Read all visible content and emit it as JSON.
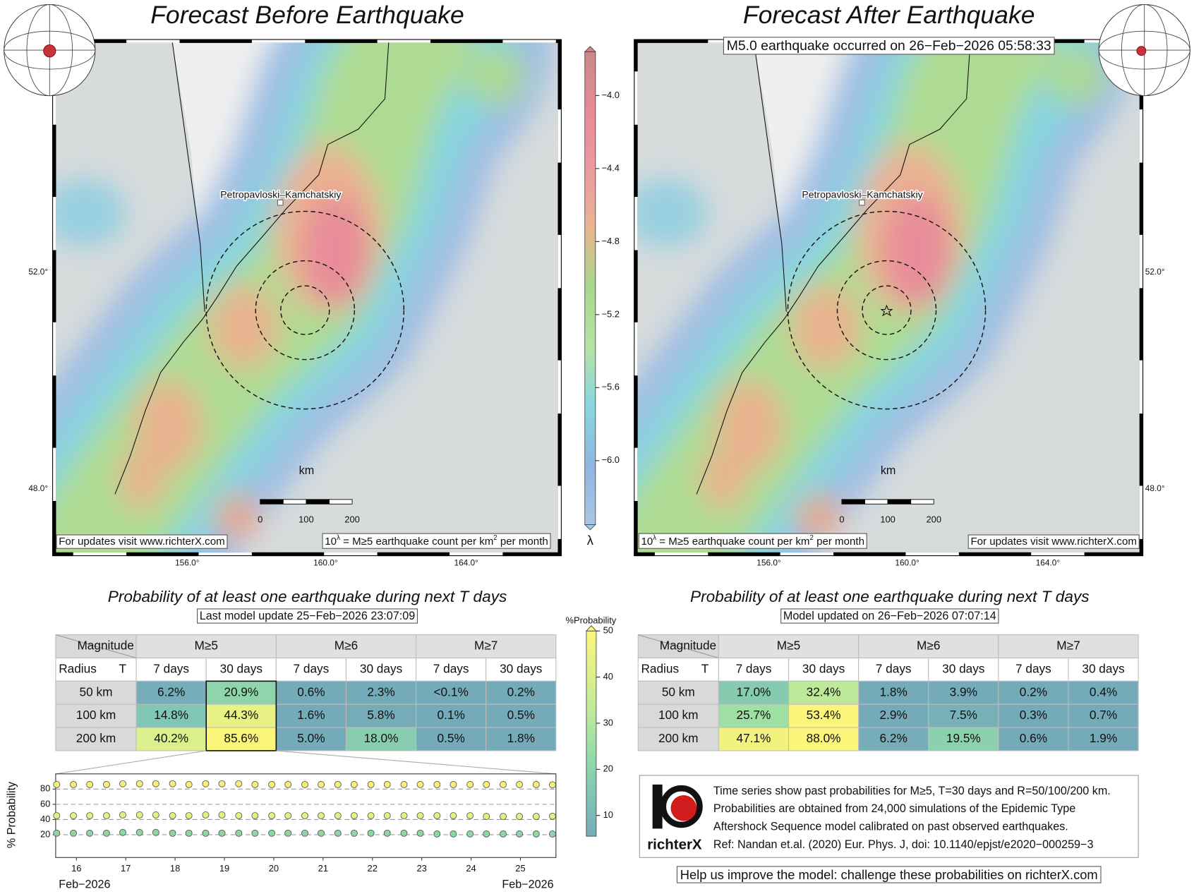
{
  "maps": [
    {
      "title": "Forecast Before Earthquake",
      "city": "Petropavloski–Kamchatskiy",
      "scale_unit": "km",
      "scale_ticks": [
        "0",
        "100",
        "200"
      ],
      "updates": "For updates visit www.richterX.com",
      "note": [
        "10",
        "λ",
        " = M≥5 earthquake count per km",
        "2",
        " per month"
      ],
      "lat": [
        "52.0°",
        "48.0°"
      ],
      "lon": [
        "156.0°",
        "160.0°",
        "164.0°"
      ]
    },
    {
      "title": "Forecast After Earthquake",
      "event": "M5.0 earthquake occurred on 26−Feb−2026 05:58:33",
      "city": "Petropavloski–Kamchatskiy",
      "scale_unit": "km",
      "scale_ticks": [
        "0",
        "100",
        "200"
      ],
      "updates": "For updates visit www.richterX.com",
      "note": [
        "10",
        "λ",
        " = M≥5 earthquake count per km",
        "2",
        " per month"
      ],
      "lat": [
        "52.0°",
        "48.0°"
      ],
      "lon": [
        "156.0°",
        "160.0°",
        "164.0°"
      ]
    }
  ],
  "lambda_colorbar": {
    "label": "λ",
    "clim": [
      -6.35,
      -3.76
    ],
    "colors": [
      "#a9c6e6",
      "#8fb6e0",
      "#86d7e0",
      "#b6e2a6",
      "#a6d98c",
      "#e8b690",
      "#ec9aa0",
      "#e88a98",
      "#c98a86"
    ],
    "ticks": [
      {
        "value": -4.0,
        "label": "−4.0"
      },
      {
        "value": -4.4,
        "label": "−4.4"
      },
      {
        "value": -4.8,
        "label": "−4.8"
      },
      {
        "value": -5.2,
        "label": "−5.2"
      },
      {
        "value": -5.6,
        "label": "−5.6"
      },
      {
        "value": -6.0,
        "label": "−6.0"
      }
    ]
  },
  "prob_colorbar": {
    "label": "%Probability",
    "clim": [
      5.5,
      50
    ],
    "colors": [
      "#75abb8",
      "#80c4b4",
      "#95dba8",
      "#bde99a",
      "#def08a",
      "#fbf57a"
    ],
    "ticks": [
      10,
      20,
      30,
      40,
      50
    ]
  },
  "tables": [
    {
      "title": "Probability of at least one earthquake during next T days",
      "subtitle": "Last model update 25−Feb−2026 23:07:09",
      "corner": {
        "top": "Magnitude",
        "left": "Radius",
        "right": "T"
      },
      "magnitudes": [
        "M≥5",
        "M≥6",
        "M≥7"
      ],
      "periods": [
        "7 days",
        "30 days",
        "7 days",
        "30 days",
        "7 days",
        "30 days"
      ],
      "radii": [
        "50 km",
        "100 km",
        "200 km"
      ],
      "values": [
        [
          6.2,
          20.9,
          0.6,
          2.3,
          0.1,
          0.2
        ],
        [
          14.8,
          44.3,
          1.6,
          5.8,
          0.1,
          0.5
        ],
        [
          40.2,
          85.6,
          5.0,
          18.0,
          0.5,
          1.8
        ]
      ],
      "value_labels": [
        [
          "6.2%",
          "20.9%",
          "0.6%",
          "2.3%",
          "<0.1%",
          "0.2%"
        ],
        [
          "14.8%",
          "44.3%",
          "1.6%",
          "5.8%",
          "0.1%",
          "0.5%"
        ],
        [
          "40.2%",
          "85.6%",
          "5.0%",
          "18.0%",
          "0.5%",
          "1.8%"
        ]
      ]
    },
    {
      "title": "Probability of at least one earthquake during next T days",
      "subtitle": "Model updated on 26−Feb−2026 07:07:14",
      "corner": {
        "top": "Magnitude",
        "left": "Radius",
        "right": "T"
      },
      "magnitudes": [
        "M≥5",
        "M≥6",
        "M≥7"
      ],
      "periods": [
        "7 days",
        "30 days",
        "7 days",
        "30 days",
        "7 days",
        "30 days"
      ],
      "radii": [
        "50 km",
        "100 km",
        "200 km"
      ],
      "values": [
        [
          17.0,
          32.4,
          1.8,
          3.9,
          0.2,
          0.4
        ],
        [
          25.7,
          53.4,
          2.9,
          7.5,
          0.3,
          0.7
        ],
        [
          47.1,
          88.0,
          6.2,
          19.5,
          0.6,
          1.9
        ]
      ],
      "value_labels": [
        [
          "17.0%",
          "32.4%",
          "1.8%",
          "3.9%",
          "0.2%",
          "0.4%"
        ],
        [
          "25.7%",
          "53.4%",
          "2.9%",
          "7.5%",
          "0.3%",
          "0.7%"
        ],
        [
          "47.1%",
          "88.0%",
          "6.2%",
          "19.5%",
          "0.6%",
          "1.9%"
        ]
      ]
    }
  ],
  "chart_data": {
    "type": "scatter",
    "ylabel": "% Probability",
    "xlabel_left": "Feb−2026",
    "xlabel_right": "Feb−2026",
    "xlim": [
      15.58,
      25.72
    ],
    "xticks": [
      16,
      17,
      18,
      19,
      20,
      21,
      22,
      23,
      24,
      25
    ],
    "ylim": [
      -10,
      100
    ],
    "yticks": [
      20,
      40,
      60,
      80
    ],
    "grid": true,
    "x": [
      15.6,
      15.94,
      16.27,
      16.61,
      16.94,
      17.28,
      17.61,
      17.95,
      18.28,
      18.62,
      18.95,
      19.29,
      19.62,
      19.96,
      20.29,
      20.63,
      20.96,
      21.3,
      21.63,
      21.97,
      22.3,
      22.64,
      22.97,
      23.31,
      23.64,
      23.98,
      24.31,
      24.65,
      24.98,
      25.32,
      25.65
    ],
    "series": [
      {
        "color": "#f4f07a",
        "values": [
          86,
          86,
          86,
          86,
          87,
          87,
          87,
          87,
          86,
          87,
          87,
          87,
          86,
          86,
          86,
          86,
          86,
          86,
          86,
          86,
          86,
          86,
          86,
          86,
          86,
          86,
          86,
          86,
          86,
          86,
          85.6
        ]
      },
      {
        "color": "#e6ee80",
        "values": [
          45,
          45,
          45,
          45,
          46,
          46,
          46,
          45,
          45,
          46,
          46,
          45,
          45,
          45,
          45,
          45,
          45,
          45,
          45,
          45,
          45,
          45,
          45,
          45,
          45,
          45,
          44,
          44,
          44,
          44,
          44.3
        ]
      },
      {
        "color": "#8fd6a4",
        "values": [
          22,
          22,
          22,
          22,
          23,
          23,
          23,
          22,
          22,
          22,
          22,
          22,
          22,
          22,
          22,
          22,
          22,
          22,
          22,
          22,
          22,
          22,
          22,
          21,
          21,
          21,
          21,
          21,
          21,
          21,
          20.9
        ]
      }
    ]
  },
  "info": {
    "brand": "richterX",
    "lines": [
      "Time series show past probabilities for M≥5, T=30 days and R=50/100/200 km.",
      "Probabilities are obtained from 24,000 simulations of the Epidemic Type",
      "Aftershock Sequence model calibrated on past observed earthquakes.",
      "Ref: Nandan et.al. (2020) Eur. Phys. J, doi: 10.1140/epjst/e2020−000259−3"
    ],
    "footer": "Help us improve the model: challenge these probabilities on richterX.com"
  }
}
